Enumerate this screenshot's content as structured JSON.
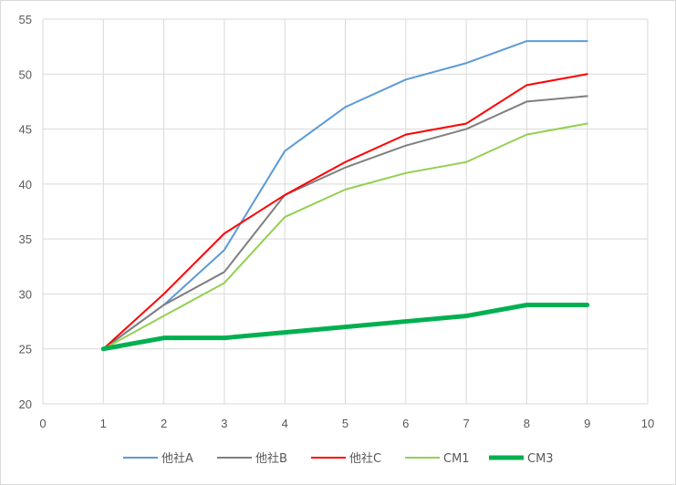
{
  "chart_data": {
    "type": "line",
    "title": "",
    "xlabel": "",
    "ylabel": "",
    "xlim": [
      0,
      10
    ],
    "ylim": [
      20,
      55
    ],
    "x_ticks": [
      0,
      1,
      2,
      3,
      4,
      5,
      6,
      7,
      8,
      9,
      10
    ],
    "y_ticks": [
      20,
      25,
      30,
      35,
      40,
      45,
      50,
      55
    ],
    "grid": true,
    "legend_position": "bottom",
    "x": [
      1,
      2,
      3,
      4,
      5,
      6,
      7,
      8,
      9
    ],
    "series": [
      {
        "name": "他社A",
        "color": "#5b9bd5",
        "width": 2,
        "values": [
          25,
          29,
          34,
          43,
          47,
          49.5,
          51,
          53,
          53
        ]
      },
      {
        "name": "他社B",
        "color": "#7f7f7f",
        "width": 2,
        "values": [
          25,
          29,
          32,
          39,
          41.5,
          43.5,
          45,
          47.5,
          48
        ]
      },
      {
        "name": "他社C",
        "color": "#ff0000",
        "width": 2,
        "values": [
          25,
          30,
          35.5,
          39,
          42,
          44.5,
          45.5,
          49,
          50
        ]
      },
      {
        "name": "CM1",
        "color": "#92d050",
        "width": 2,
        "values": [
          25,
          28,
          31,
          37,
          39.5,
          41,
          42,
          44.5,
          45.5
        ]
      },
      {
        "name": "CM3",
        "color": "#00b050",
        "width": 5,
        "values": [
          25,
          26,
          26,
          26.5,
          27,
          27.5,
          28,
          29,
          29
        ]
      }
    ]
  }
}
